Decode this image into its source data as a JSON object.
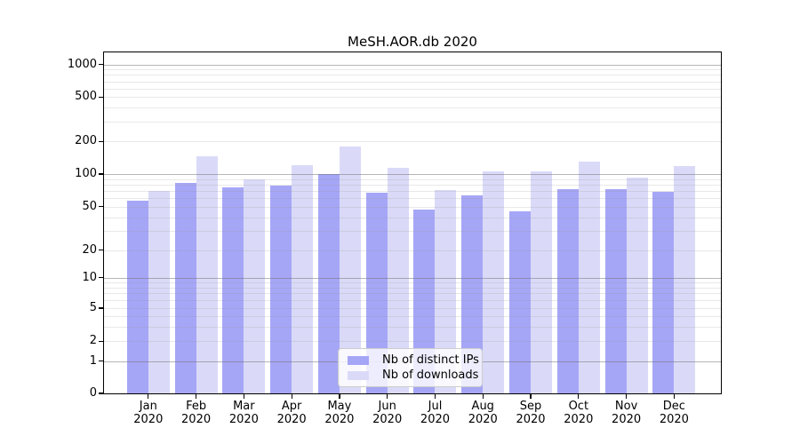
{
  "figure": {
    "title": "MeSH.AOR.db 2020"
  },
  "chart_data": {
    "type": "bar",
    "title": "MeSH.AOR.db 2020",
    "xlabel": "",
    "ylabel": "",
    "yscale": "symlog",
    "ylim": [
      0,
      1300
    ],
    "yticks": [
      0,
      1,
      2,
      5,
      10,
      20,
      50,
      100,
      200,
      500,
      1000
    ],
    "grid": true,
    "months": [
      "Jan",
      "Feb",
      "Mar",
      "Apr",
      "May",
      "Jun",
      "Jul",
      "Aug",
      "Sep",
      "Oct",
      "Nov",
      "Dec"
    ],
    "year": "2020",
    "categories": [
      "Jan 2020",
      "Feb 2020",
      "Mar 2020",
      "Apr 2020",
      "May 2020",
      "Jun 2020",
      "Jul 2020",
      "Aug 2020",
      "Sep 2020",
      "Oct 2020",
      "Nov 2020",
      "Dec 2020"
    ],
    "series": [
      {
        "name": "Nb of distinct IPs",
        "color": "#a6a6f7",
        "values": [
          57,
          83,
          75,
          78,
          100,
          67,
          47,
          64,
          45,
          72,
          72,
          68
        ]
      },
      {
        "name": "Nb of downloads",
        "color": "#dadaf8",
        "values": [
          70,
          145,
          90,
          120,
          180,
          115,
          71,
          106,
          106,
          130,
          92,
          118
        ]
      }
    ],
    "legend_position": "lower center"
  },
  "colors": {
    "background": "#ffffff",
    "spine": "#000000",
    "major_grid": "#b0b0b0",
    "minor_grid": "#e9e9e9"
  }
}
